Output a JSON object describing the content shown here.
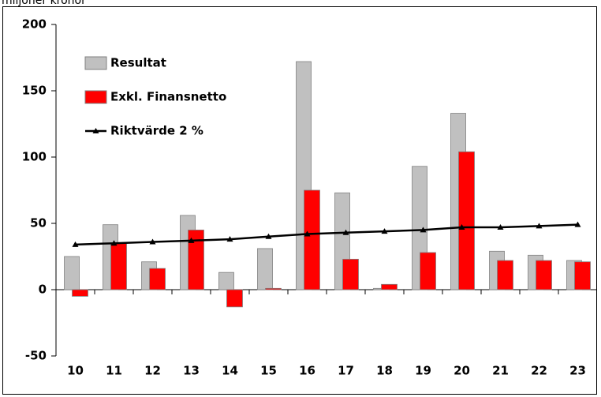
{
  "chart_data": {
    "type": "bar",
    "title": "miljoner kronor",
    "categories": [
      "10",
      "11",
      "12",
      "13",
      "14",
      "15",
      "16",
      "17",
      "18",
      "19",
      "20",
      "21",
      "22",
      "23"
    ],
    "series": [
      {
        "name": "Resultat",
        "type": "bar",
        "color": "#c0c0c0",
        "values": [
          25,
          49,
          21,
          56,
          13,
          31,
          172,
          73,
          1,
          93,
          133,
          29,
          26,
          22
        ]
      },
      {
        "name": "Exkl. Finansnetto",
        "type": "bar",
        "color": "#ff0000",
        "values": [
          -5,
          35,
          16,
          45,
          -13,
          1,
          75,
          23,
          4,
          28,
          104,
          22,
          22,
          21
        ]
      },
      {
        "name": "Riktvärde 2 %",
        "type": "line",
        "color": "#000000",
        "values": [
          34,
          35,
          36,
          37,
          38,
          40,
          42,
          43,
          44,
          45,
          47,
          47,
          48,
          49
        ]
      }
    ],
    "ylim": [
      -50,
      200
    ],
    "yticks": [
      -50,
      0,
      50,
      100,
      150,
      200
    ],
    "legend": "upper left",
    "grid": false
  }
}
